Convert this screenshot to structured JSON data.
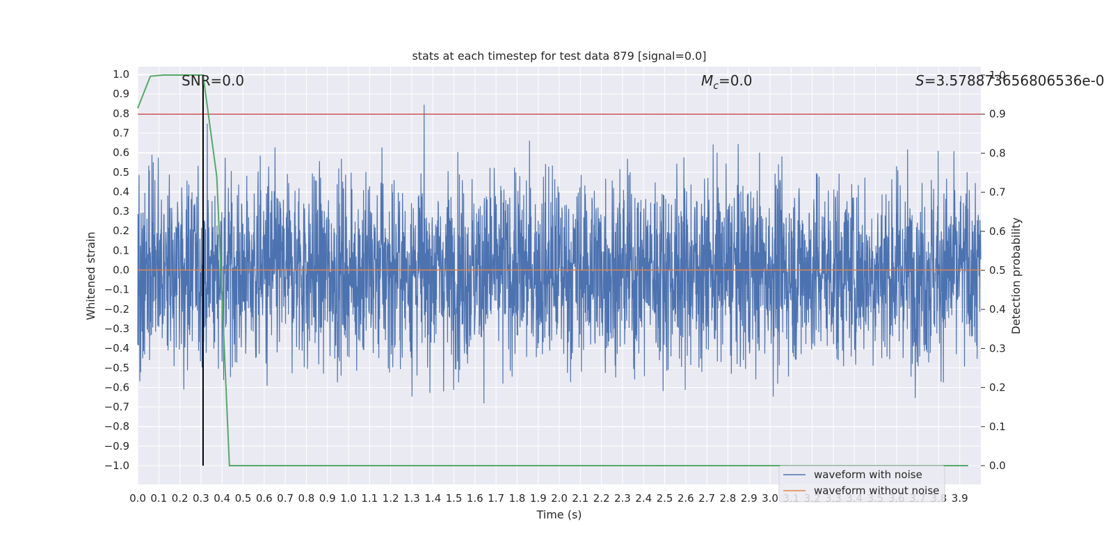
{
  "chart_data": {
    "type": "line",
    "title": "stats at each timestep for test data 879 [signal=0.0]",
    "xlabel": "Time (s)",
    "ylabel": "Whitened strain",
    "y2label": "Detection probability",
    "xlim": [
      0.0,
      4.0
    ],
    "ylim": [
      -1.1,
      1.1
    ],
    "y2lim": [
      -0.05,
      1.0
    ],
    "xticks": [
      "0.0",
      "0.1",
      "0.2",
      "0.3",
      "0.4",
      "0.5",
      "0.6",
      "0.7",
      "0.8",
      "0.9",
      "1.0",
      "1.1",
      "1.2",
      "1.3",
      "1.4",
      "1.5",
      "1.6",
      "1.7",
      "1.8",
      "1.9",
      "2.0",
      "2.1",
      "2.2",
      "2.3",
      "2.4",
      "2.5",
      "2.6",
      "2.7",
      "2.8",
      "2.9",
      "3.0",
      "3.1",
      "3.2",
      "3.3",
      "3.4",
      "3.5",
      "3.6",
      "3.7",
      "3.8",
      "3.9"
    ],
    "yticks": [
      "1.0",
      "0.9",
      "0.8",
      "0.7",
      "0.6",
      "0.5",
      "0.4",
      "0.3",
      "0.2",
      "0.1",
      "0.0",
      "−0.1",
      "−0.2",
      "−0.3",
      "−0.4",
      "−0.5",
      "−0.6",
      "−0.7",
      "−0.8",
      "−0.9",
      "−1.0"
    ],
    "y2ticks": [
      "1.0",
      "0.9",
      "0.8",
      "0.7",
      "0.6",
      "0.5",
      "0.4",
      "0.3",
      "0.2",
      "0.1",
      "0.0"
    ],
    "grid": true,
    "legend_placement": "lower-right",
    "annotations": {
      "snr": "SNR=0.0",
      "mc_symbol": "M",
      "mc_sub": "c",
      "mc_value": "=0.0",
      "s_symbol": "S",
      "s_value": "=3.578873656806536e-0"
    },
    "series": [
      {
        "name": "waveform with noise",
        "color": "#4c72b0",
        "kind": "noise",
        "y_range": [
          -1.0,
          0.98
        ]
      },
      {
        "name": "waveform without noise",
        "color": "#dd8452",
        "kind": "constant",
        "value": 0.0
      },
      {
        "color": "#55a868",
        "axis": "right",
        "x": [
          0.0,
          0.06,
          0.12,
          0.19,
          0.25,
          0.31,
          0.375,
          0.435,
          0.5,
          1.0,
          2.0,
          3.0,
          3.94
        ],
        "values": [
          0.915,
          0.997,
          1.0,
          1.0,
          1.0,
          1.0,
          0.74,
          0.0,
          0.0,
          0.0,
          0.0,
          0.0,
          0.0
        ]
      },
      {
        "color": "#c44e52",
        "axis": "right",
        "kind": "hline",
        "value": 0.9
      },
      {
        "color": "#000000",
        "kind": "vline",
        "value": 0.31
      }
    ],
    "colors": {
      "background": "#eaeaf2",
      "grid": "#ffffff"
    }
  }
}
